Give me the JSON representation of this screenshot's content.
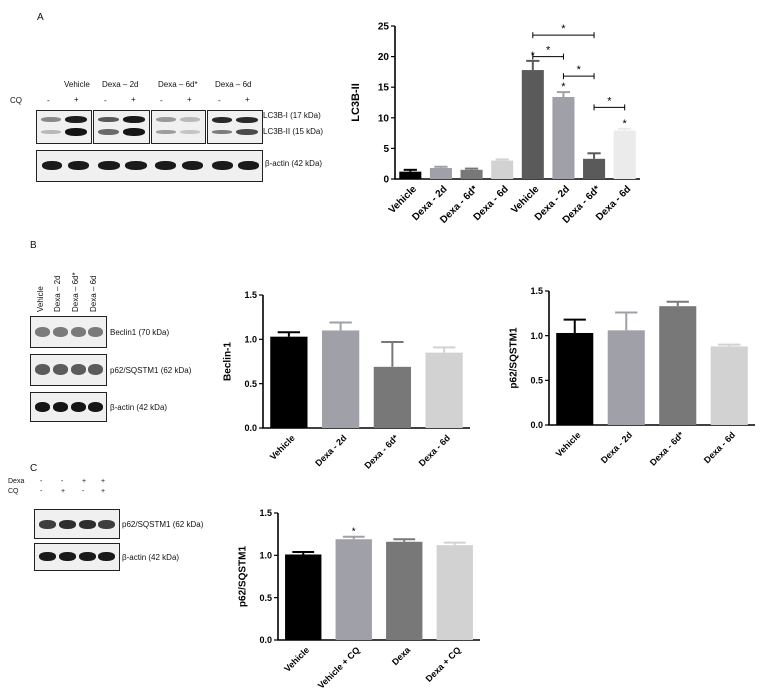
{
  "panels": {
    "A": {
      "letter": "A",
      "cq_label": "CQ",
      "groups": [
        "Vehicle",
        "Dexa – 2d",
        "Dexa – 6d*",
        "Dexa – 6d"
      ],
      "signs": [
        "-",
        "+",
        "-",
        "+",
        "-",
        "+",
        "-",
        "+"
      ],
      "bands": [
        "LC3B-I (17 kDa)",
        "LC3B-II (15 kDa)",
        "β-actin (42 kDa)"
      ]
    },
    "B": {
      "letter": "B",
      "lanes": [
        "Vehicle",
        "Dexa – 2d",
        "Dexa – 6d*",
        "Dexa – 6d"
      ],
      "bands": [
        "Beclin1 (70 kDa)",
        "p62/SQSTM1 (62 kDa)",
        "β-actin (42 kDa)"
      ]
    },
    "C": {
      "letter": "C",
      "row_labels": [
        "Dexa",
        "CQ"
      ],
      "dexa_signs": [
        "-",
        "-",
        "+",
        "+"
      ],
      "cq_signs": [
        "-",
        "+",
        "-",
        "+"
      ],
      "bands": [
        "p62/SQSTM1 (62 kDa)",
        "β-actin (42 kDa)"
      ]
    }
  },
  "chart_data": [
    {
      "id": "lc3b",
      "type": "bar",
      "ylabel": "LC3B-II",
      "ylim": [
        0,
        25
      ],
      "yticks": [
        0,
        5,
        10,
        15,
        20,
        25
      ],
      "categories": [
        "Vehicle",
        "Dexa - 2d",
        "Dexa - 6d*",
        "Dexa - 6d",
        "Vehicle",
        "Dexa - 2d",
        "Dexa - 6d*",
        "Dexa - 6d"
      ],
      "values": [
        1.2,
        1.8,
        1.5,
        3.0,
        17.8,
        13.4,
        3.3,
        7.9
      ],
      "errors": [
        0.3,
        0.2,
        0.2,
        0.2,
        1.5,
        0.8,
        0.9,
        0.3
      ],
      "colors": [
        "#000000",
        "#a0a0a8",
        "#787878",
        "#d2d2d2",
        "#5a5a5a",
        "#a0a0a8",
        "#5a5a5a",
        "#ebebeb"
      ],
      "stars": [
        "",
        "",
        "",
        "",
        "*",
        "*",
        "",
        "*"
      ],
      "brackets": [
        {
          "from": 4,
          "to": 6,
          "y": 23.5,
          "label": "*"
        },
        {
          "from": 4,
          "to": 5,
          "y": 20.0,
          "label": "*"
        },
        {
          "from": 5,
          "to": 6,
          "y": 16.8,
          "label": "*"
        },
        {
          "from": 6,
          "to": 7,
          "y": 11.7,
          "label": "*"
        }
      ]
    },
    {
      "id": "beclin",
      "type": "bar",
      "ylabel": "Beclin-1",
      "ylim": [
        0,
        1.5
      ],
      "yticks": [
        0.0,
        0.5,
        1.0,
        1.5
      ],
      "categories": [
        "Vehicle",
        "Dexa - 2d",
        "Dexa - 6d*",
        "Dexa - 6d"
      ],
      "values": [
        1.03,
        1.1,
        0.69,
        0.85
      ],
      "errors": [
        0.05,
        0.09,
        0.28,
        0.06
      ],
      "colors": [
        "#000000",
        "#a0a0a8",
        "#787878",
        "#d2d2d2"
      ],
      "stars": [
        "",
        "",
        "",
        ""
      ],
      "brackets": []
    },
    {
      "id": "p62b",
      "type": "bar",
      "ylabel": "p62/SQSTM1",
      "ylim": [
        0,
        1.5
      ],
      "yticks": [
        0.0,
        0.5,
        1.0,
        1.5
      ],
      "categories": [
        "Vehicle",
        "Dexa - 2d",
        "Dexa - 6d*",
        "Dexa - 6d"
      ],
      "values": [
        1.03,
        1.06,
        1.33,
        0.88
      ],
      "errors": [
        0.15,
        0.2,
        0.05,
        0.02
      ],
      "colors": [
        "#000000",
        "#a0a0a8",
        "#787878",
        "#d2d2d2"
      ],
      "stars": [
        "",
        "",
        "",
        ""
      ],
      "brackets": []
    },
    {
      "id": "p62c",
      "type": "bar",
      "ylabel": "p62/SQSTM1",
      "ylim": [
        0,
        1.5
      ],
      "yticks": [
        0.0,
        0.5,
        1.0,
        1.5
      ],
      "categories": [
        "Vehicle",
        "Vehicle + CQ",
        "Dexa",
        "Dexa + CQ"
      ],
      "values": [
        1.01,
        1.19,
        1.16,
        1.12
      ],
      "errors": [
        0.03,
        0.03,
        0.03,
        0.03
      ],
      "colors": [
        "#000000",
        "#a0a0a8",
        "#787878",
        "#d2d2d2"
      ],
      "stars": [
        "",
        "*",
        "",
        ""
      ],
      "brackets": []
    }
  ]
}
